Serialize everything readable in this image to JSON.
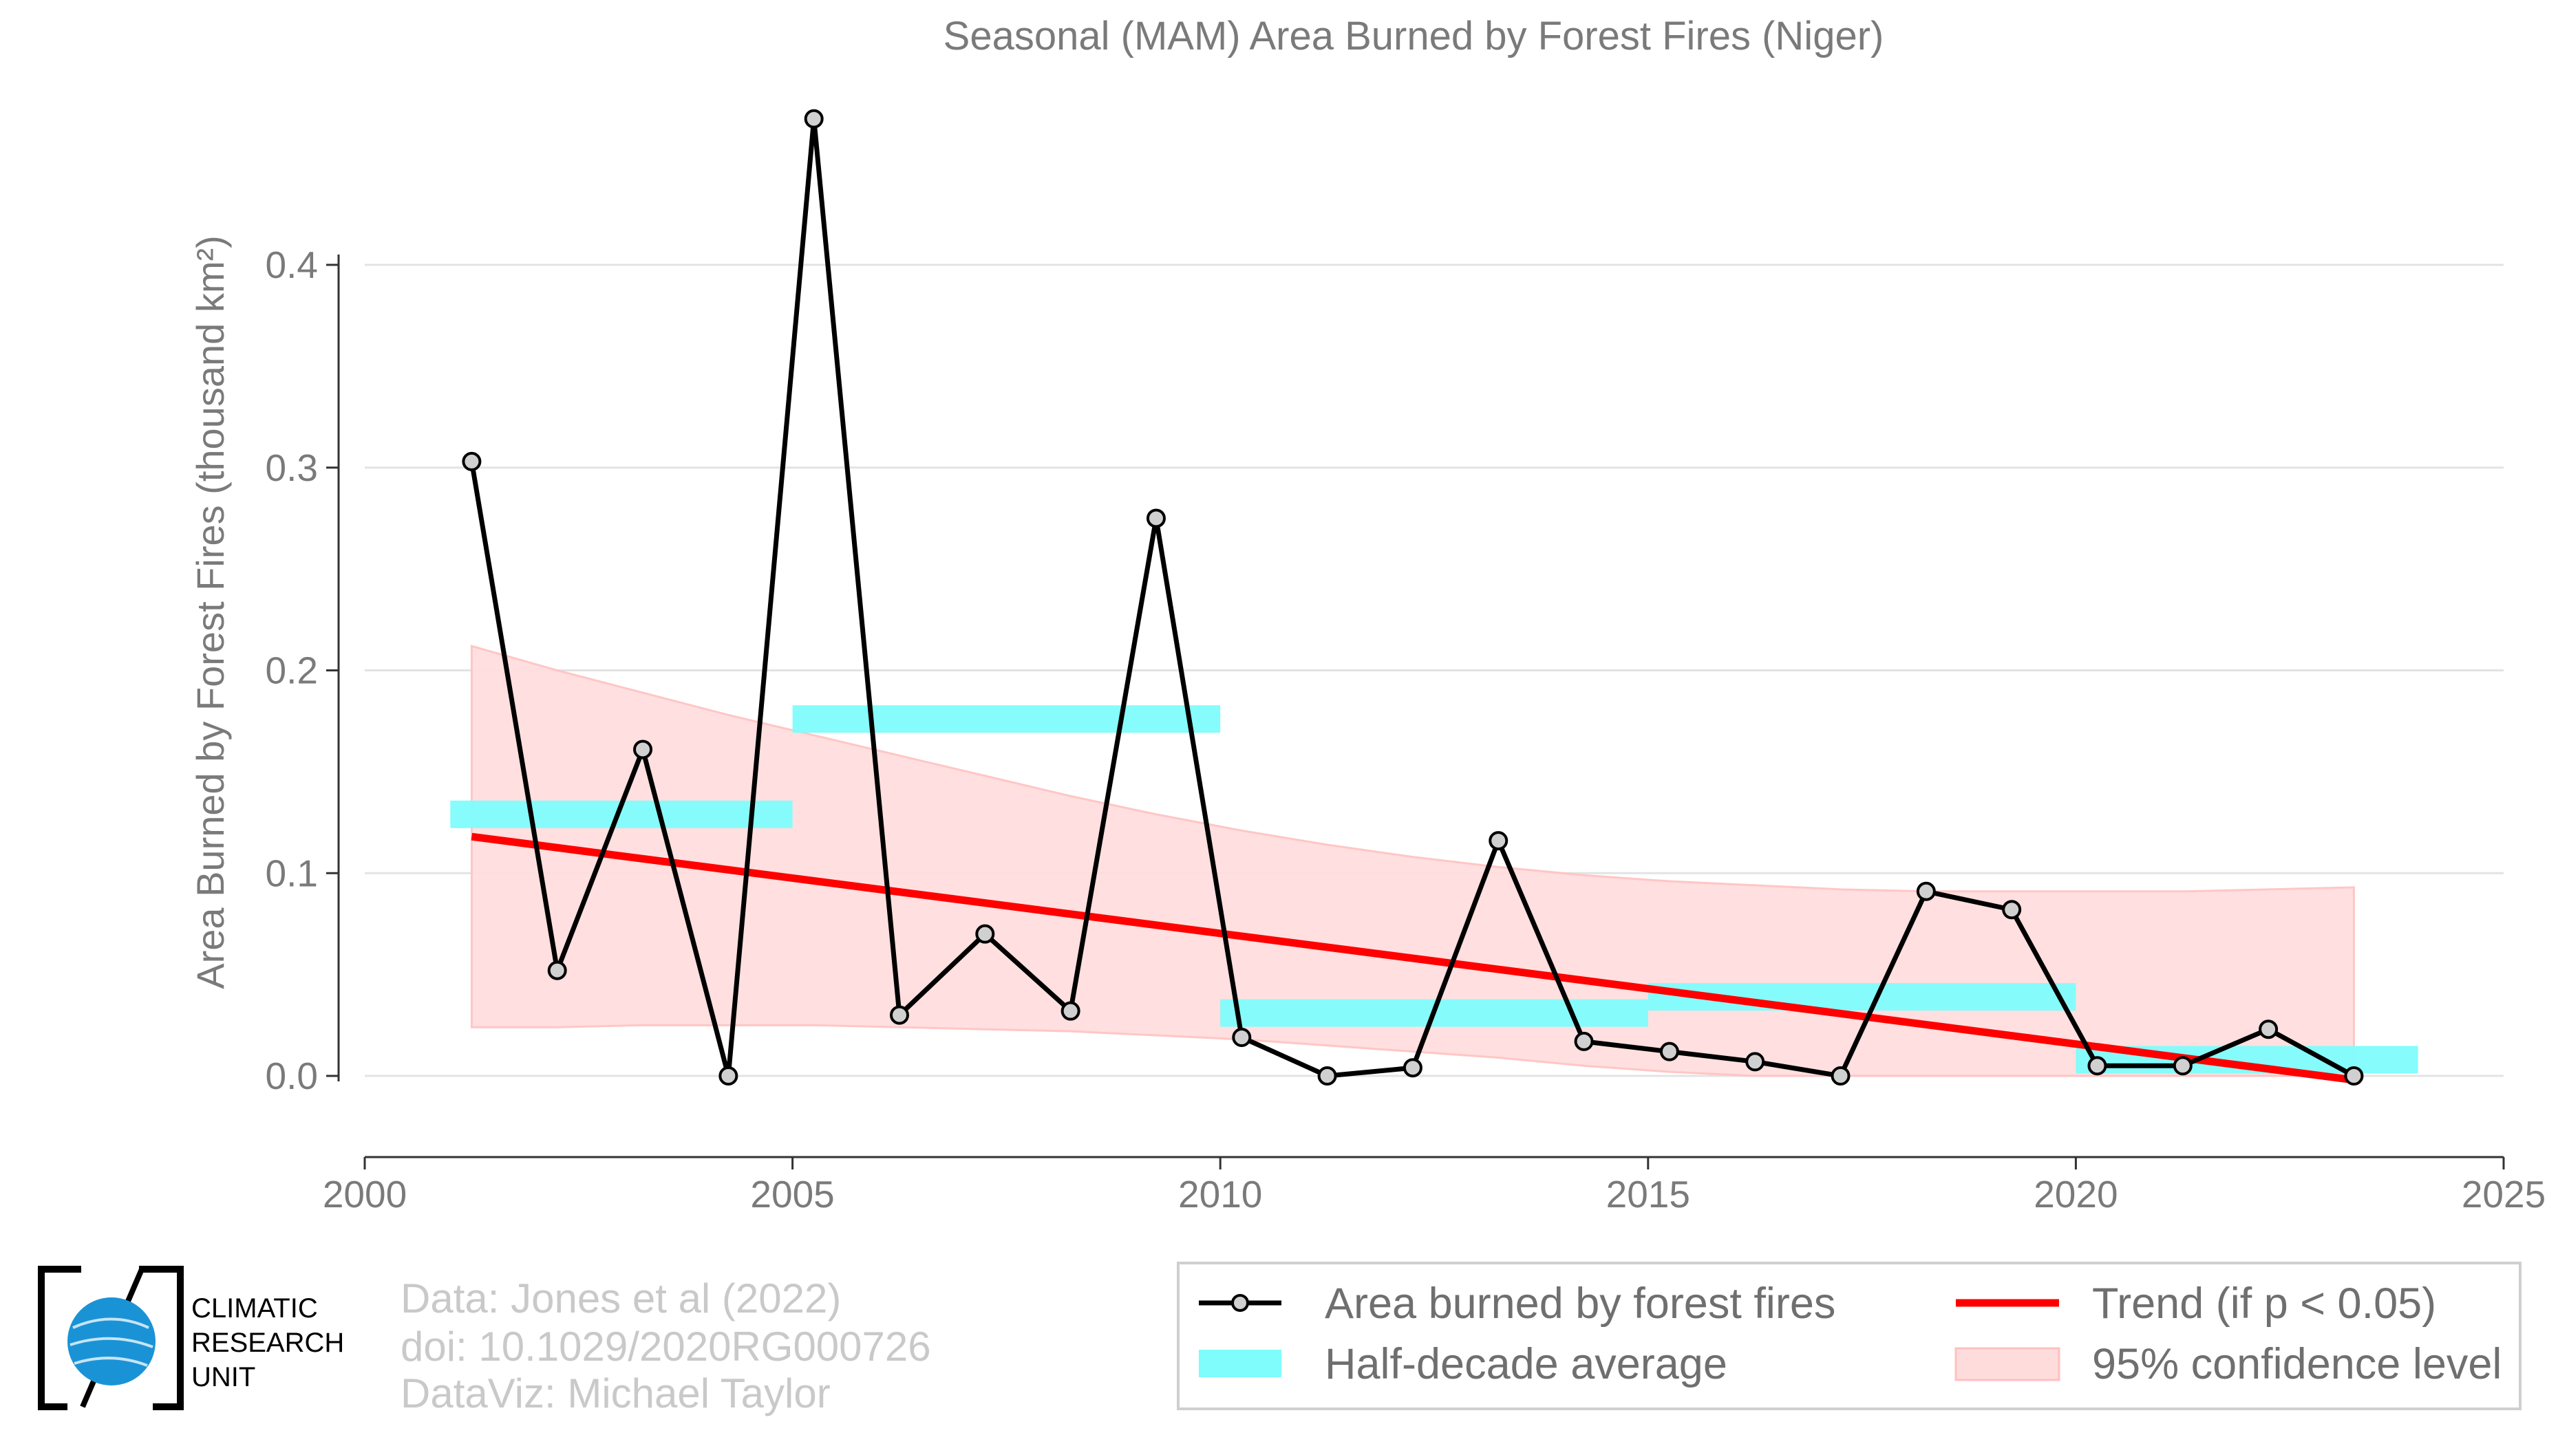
{
  "chart_data": {
    "type": "line",
    "title": "Seasonal (MAM) Area Burned by Forest Fires (Niger)",
    "xlabel": "",
    "ylabel": "Area Burned by Forest Fires (thousand km²)",
    "xlim": [
      2000,
      2025
    ],
    "ylim": [
      -0.04,
      0.47
    ],
    "x_ticks": [
      "2000",
      "2005",
      "2010",
      "2015",
      "2020",
      "2025"
    ],
    "y_ticks": [
      "0.0",
      "0.1",
      "0.2",
      "0.3",
      "0.4"
    ],
    "grid": "horizontal",
    "legend_position": "bottom-right",
    "series": [
      {
        "name": "Area burned by forest fires",
        "color": "#000000",
        "marker_fill": "#d0d0d0",
        "x": [
          2001,
          2002,
          2003,
          2004,
          2005,
          2006,
          2007,
          2008,
          2009,
          2010,
          2011,
          2012,
          2013,
          2014,
          2015,
          2016,
          2017,
          2018,
          2019,
          2020,
          2021,
          2022,
          2023
        ],
        "y": [
          0.303,
          0.052,
          0.161,
          0.0,
          0.472,
          0.03,
          0.07,
          0.032,
          0.275,
          0.019,
          0.0,
          0.004,
          0.116,
          0.017,
          0.012,
          0.007,
          0.0,
          0.091,
          0.082,
          0.005,
          0.005,
          0.023,
          0.0
        ]
      }
    ],
    "half_decade_average": {
      "name": "Half-decade average",
      "color": "#7ffcfc",
      "segments": [
        {
          "x0": 2001,
          "x1": 2005,
          "value": 0.129
        },
        {
          "x0": 2005,
          "x1": 2010,
          "value": 0.176
        },
        {
          "x0": 2010,
          "x1": 2015,
          "value": 0.031
        },
        {
          "x0": 2015,
          "x1": 2020,
          "value": 0.039
        },
        {
          "x0": 2020,
          "x1": 2024,
          "value": 0.008
        }
      ]
    },
    "trend": {
      "name": "Trend (if p < 0.05)",
      "color": "#ff0000",
      "x": [
        2001,
        2023
      ],
      "y": [
        0.118,
        -0.002
      ]
    },
    "confidence_band": {
      "name": "95% confidence level",
      "color": "#ffc8c8",
      "x": [
        2001,
        2002,
        2003,
        2004,
        2005,
        2006,
        2007,
        2008,
        2009,
        2010,
        2011,
        2012,
        2013,
        2014,
        2015,
        2016,
        2017,
        2018,
        2019,
        2020,
        2021,
        2022,
        2023
      ],
      "upper": [
        0.212,
        0.2,
        0.189,
        0.178,
        0.168,
        0.158,
        0.148,
        0.138,
        0.129,
        0.121,
        0.114,
        0.108,
        0.103,
        0.099,
        0.096,
        0.094,
        0.092,
        0.091,
        0.091,
        0.091,
        0.091,
        0.092,
        0.093
      ],
      "lower": [
        0.024,
        0.024,
        0.025,
        0.025,
        0.025,
        0.024,
        0.023,
        0.022,
        0.02,
        0.018,
        0.015,
        0.012,
        0.009,
        0.005,
        0.002,
        0.0,
        0.0,
        0.0,
        0.0,
        0.0,
        0.0,
        0.0,
        0.0
      ]
    }
  },
  "footer": {
    "cru_line1": "CLIMATIC",
    "cru_line2": "RESEARCH",
    "cru_line3": "UNIT",
    "credit_line1": "Data: Jones et al (2022)",
    "credit_line2": "doi: 10.1029/2020RG000726",
    "credit_line3": "DataViz: Michael Taylor"
  }
}
